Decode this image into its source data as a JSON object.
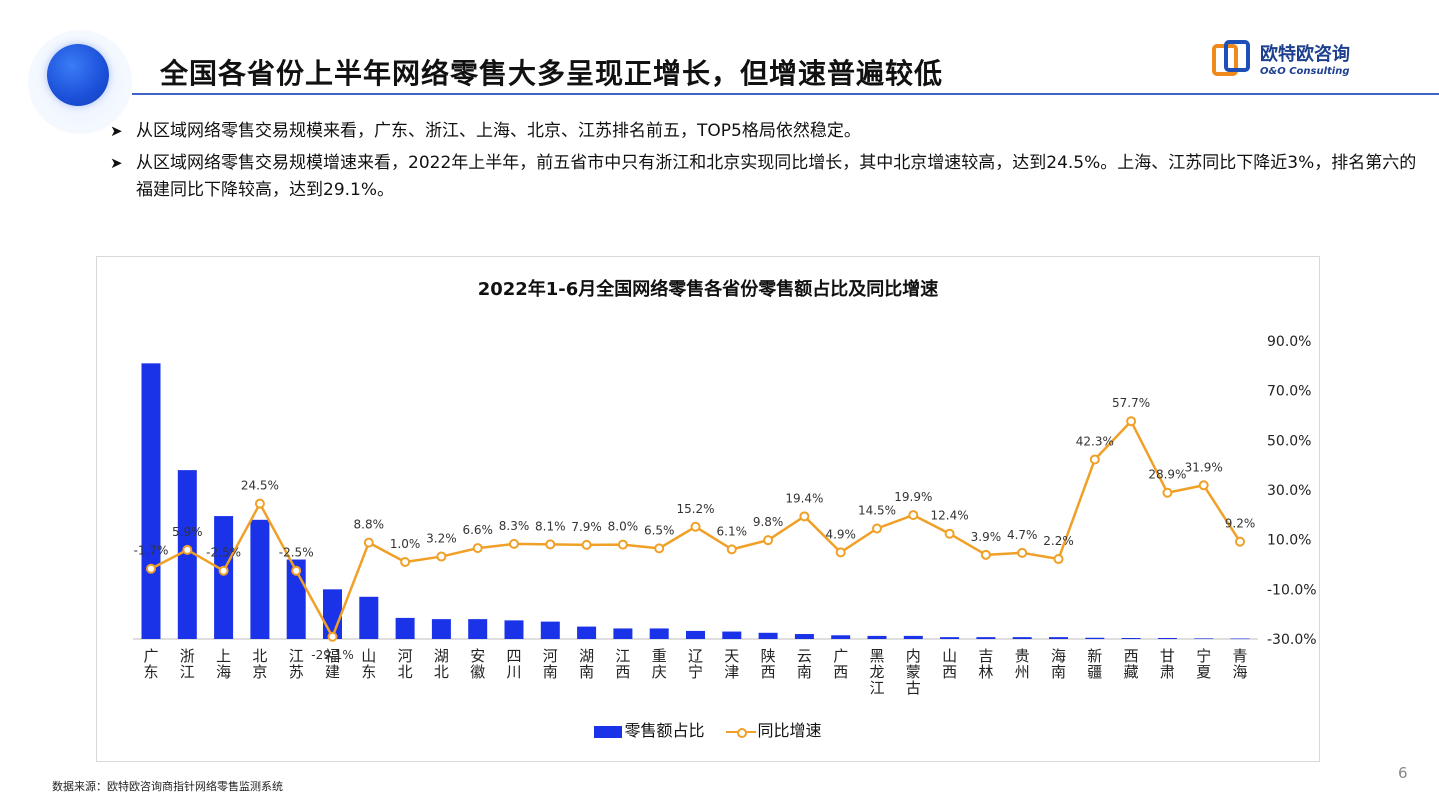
{
  "title": "全国各省份上半年网络零售大多呈现正增长，但增速普遍较低",
  "logo": {
    "cn": "欧特欧咨询",
    "en": "O&O Consulting"
  },
  "bullets": [
    "从区域网络零售交易规模来看，广东、浙江、上海、北京、江苏排名前五，TOP5格局依然稳定。",
    "从区域网络零售交易规模增速来看，2022年上半年，前五省市中只有浙江和北京实现同比增长，其中北京增速较高，达到24.5%。上海、江苏同比下降近3%，排名第六的福建同比下降较高，达到29.1%。"
  ],
  "source": "数据来源：欧特欧咨询商指针网络零售监测系统",
  "page_number": "6",
  "chart_data": {
    "type": "bar+line",
    "title": "2022年1-6月全国网络零售各省份零售额占比及同比增速",
    "categories": [
      "广东",
      "浙江",
      "上海",
      "北京",
      "江苏",
      "福建",
      "山东",
      "河北",
      "湖北",
      "安徽",
      "四川",
      "河南",
      "湖南",
      "江西",
      "重庆",
      "辽宁",
      "天津",
      "陕西",
      "云南",
      "广西",
      "黑龙江",
      "内蒙古",
      "山西",
      "吉林",
      "贵州",
      "海南",
      "新疆",
      "西藏",
      "甘肃",
      "宁夏",
      "青海"
    ],
    "series": [
      {
        "name": "零售额占比",
        "type": "bar",
        "color": "#1a33e8",
        "axis": "left",
        "values": [
          22.2,
          13.6,
          9.9,
          9.6,
          6.4,
          4.0,
          3.4,
          1.7,
          1.6,
          1.6,
          1.5,
          1.4,
          1.0,
          0.85,
          0.85,
          0.65,
          0.6,
          0.5,
          0.4,
          0.3,
          0.25,
          0.25,
          0.15,
          0.15,
          0.15,
          0.15,
          0.1,
          0.08,
          0.08,
          0.05,
          0.04
        ]
      },
      {
        "name": "同比增速",
        "type": "line",
        "color": "#f0a027",
        "axis": "right",
        "values": [
          -1.7,
          5.9,
          -2.5,
          24.5,
          -2.5,
          -29.1,
          8.8,
          1.0,
          3.2,
          6.6,
          8.3,
          8.1,
          7.9,
          8.0,
          6.5,
          15.2,
          6.1,
          9.8,
          19.4,
          4.9,
          14.5,
          19.9,
          12.4,
          3.9,
          4.7,
          2.2,
          42.3,
          57.7,
          28.9,
          31.9,
          9.2
        ],
        "labels": [
          "-1.7%",
          "5.9%",
          "-2.5%",
          "24.5%",
          "-2.5%",
          "-29.1%",
          "8.8%",
          "1.0%",
          "3.2%",
          "6.6%",
          "8.3%",
          "8.1%",
          "7.9%",
          "8.0%",
          "6.5%",
          "15.2%",
          "6.1%",
          "9.8%",
          "19.4%",
          "4.9%",
          "14.5%",
          "19.9%",
          "12.4%",
          "3.9%",
          "4.7%",
          "2.2%",
          "42.3%",
          "57.7%",
          "28.9%",
          "31.9%",
          "9.2%"
        ]
      }
    ],
    "right_axis": {
      "ticks": [
        "90.0%",
        "70.0%",
        "50.0%",
        "30.0%",
        "10.0%",
        "-10.0%",
        "-30.0%"
      ],
      "range": [
        -30,
        90
      ]
    },
    "left_axis_range": [
      0,
      24
    ],
    "legend_position": "bottom"
  }
}
